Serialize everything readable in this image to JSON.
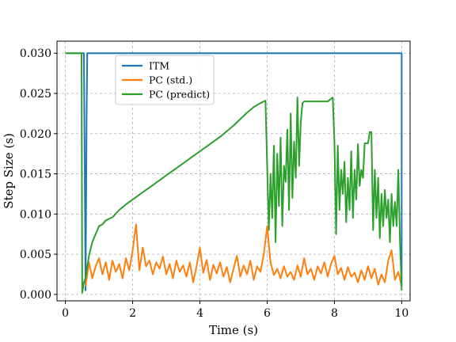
{
  "chart_data": {
    "type": "line",
    "title": "",
    "xlabel": "Time (s)",
    "ylabel": "Step Size (s)",
    "xlim": [
      -0.25,
      10.25
    ],
    "ylim": [
      -0.0008,
      0.0315
    ],
    "xticks": [
      0,
      2,
      4,
      6,
      8,
      10
    ],
    "xtick_labels": [
      "0",
      "2",
      "4",
      "6",
      "8",
      "10"
    ],
    "yticks": [
      0.0,
      0.005,
      0.01,
      0.015,
      0.02,
      0.025,
      0.03
    ],
    "ytick_labels": [
      "0.000",
      "0.005",
      "0.010",
      "0.015",
      "0.020",
      "0.025",
      "0.030"
    ],
    "grid": true,
    "legend_position": "upper-left (inside)",
    "series": [
      {
        "name": "ITM",
        "color": "#1f77b4",
        "x": [
          0,
          0.55,
          0.6,
          0.63,
          0.65,
          0.67,
          0.69,
          10.0,
          10.0
        ],
        "y": [
          0.03,
          0.03,
          0.0005,
          0.022,
          0.03,
          0.03,
          0.03,
          0.03,
          0.001
        ]
      },
      {
        "name": "PC (std.)",
        "color": "#ff7f0e",
        "x": [
          0.6,
          0.7,
          0.8,
          0.9,
          1.0,
          1.1,
          1.2,
          1.3,
          1.4,
          1.5,
          1.6,
          1.7,
          1.8,
          1.9,
          2.0,
          2.1,
          2.2,
          2.3,
          2.4,
          2.5,
          2.6,
          2.7,
          2.8,
          2.9,
          3.0,
          3.1,
          3.2,
          3.3,
          3.4,
          3.5,
          3.6,
          3.7,
          3.8,
          3.9,
          4.0,
          4.1,
          4.2,
          4.3,
          4.4,
          4.5,
          4.6,
          4.7,
          4.8,
          4.9,
          5.0,
          5.1,
          5.2,
          5.3,
          5.4,
          5.5,
          5.6,
          5.7,
          5.8,
          5.9,
          6.0,
          6.1,
          6.2,
          6.3,
          6.4,
          6.5,
          6.6,
          6.7,
          6.8,
          6.9,
          7.0,
          7.1,
          7.2,
          7.3,
          7.4,
          7.5,
          7.6,
          7.7,
          7.8,
          7.9,
          8.0,
          8.1,
          8.2,
          8.3,
          8.4,
          8.5,
          8.6,
          8.7,
          8.8,
          8.9,
          9.0,
          9.1,
          9.2,
          9.3,
          9.4,
          9.5,
          9.6,
          9.7,
          9.8,
          9.9,
          10.0
        ],
        "y": [
          0.001,
          0.004,
          0.002,
          0.0035,
          0.0045,
          0.0025,
          0.004,
          0.0018,
          0.0042,
          0.0028,
          0.0038,
          0.002,
          0.0045,
          0.003,
          0.0055,
          0.0087,
          0.003,
          0.0058,
          0.0035,
          0.0042,
          0.0025,
          0.004,
          0.0032,
          0.0047,
          0.0025,
          0.0038,
          0.002,
          0.0042,
          0.0028,
          0.0036,
          0.0022,
          0.004,
          0.0015,
          0.0035,
          0.0058,
          0.0027,
          0.0043,
          0.0018,
          0.0037,
          0.0026,
          0.004,
          0.0022,
          0.0034,
          0.0015,
          0.0032,
          0.0048,
          0.0022,
          0.0036,
          0.0025,
          0.0042,
          0.0018,
          0.0035,
          0.0028,
          0.005,
          0.0085,
          0.004,
          0.0024,
          0.0032,
          0.002,
          0.0035,
          0.0022,
          0.0028,
          0.0018,
          0.0036,
          0.0022,
          0.0045,
          0.0025,
          0.0032,
          0.0018,
          0.0035,
          0.0026,
          0.004,
          0.0022,
          0.0038,
          0.0048,
          0.0025,
          0.0033,
          0.0018,
          0.0034,
          0.0022,
          0.0027,
          0.0015,
          0.003,
          0.0018,
          0.0035,
          0.002,
          0.0032,
          0.0012,
          0.0025,
          0.0015,
          0.0042,
          0.0055,
          0.0018,
          0.0028,
          0.001
        ]
      },
      {
        "name": "PC (predict)",
        "color": "#2ca02c",
        "x": [
          0,
          0.45,
          0.48,
          0.5,
          0.55,
          0.6,
          0.7,
          0.8,
          0.9,
          1.0,
          1.1,
          1.2,
          1.4,
          1.6,
          1.8,
          2.0,
          2.2,
          2.4,
          2.6,
          2.8,
          3.0,
          3.2,
          3.4,
          3.6,
          3.8,
          4.0,
          4.2,
          4.4,
          4.6,
          4.8,
          5.0,
          5.2,
          5.4,
          5.6,
          5.8,
          5.95,
          6.0,
          6.05,
          6.1,
          6.15,
          6.2,
          6.25,
          6.3,
          6.35,
          6.4,
          6.45,
          6.5,
          6.55,
          6.6,
          6.65,
          6.7,
          6.75,
          6.8,
          6.85,
          6.9,
          6.95,
          7.0,
          7.05,
          7.1,
          7.2,
          7.4,
          7.6,
          7.8,
          7.95,
          8.0,
          8.05,
          8.1,
          8.15,
          8.2,
          8.25,
          8.3,
          8.35,
          8.4,
          8.45,
          8.5,
          8.55,
          8.6,
          8.65,
          8.7,
          8.75,
          8.8,
          8.85,
          8.9,
          8.95,
          9.0,
          9.05,
          9.1,
          9.15,
          9.2,
          9.25,
          9.3,
          9.35,
          9.4,
          9.45,
          9.5,
          9.55,
          9.6,
          9.65,
          9.7,
          9.75,
          9.8,
          9.85,
          9.9,
          9.95,
          10.0
        ],
        "y": [
          0.03,
          0.03,
          0.03,
          0.0002,
          0.0015,
          0.002,
          0.0048,
          0.0065,
          0.0075,
          0.0085,
          0.0087,
          0.0092,
          0.0096,
          0.0105,
          0.0112,
          0.0118,
          0.0124,
          0.013,
          0.0136,
          0.0142,
          0.0148,
          0.0154,
          0.016,
          0.0166,
          0.0172,
          0.0178,
          0.0184,
          0.019,
          0.0196,
          0.0203,
          0.021,
          0.0218,
          0.0226,
          0.0233,
          0.0238,
          0.0241,
          0.016,
          0.008,
          0.015,
          0.0095,
          0.0185,
          0.0065,
          0.0175,
          0.011,
          0.0195,
          0.0085,
          0.016,
          0.014,
          0.0205,
          0.0105,
          0.0225,
          0.012,
          0.019,
          0.0145,
          0.0245,
          0.016,
          0.0215,
          0.0238,
          0.024,
          0.024,
          0.024,
          0.024,
          0.024,
          0.0245,
          0.019,
          0.0075,
          0.0185,
          0.0105,
          0.0155,
          0.0125,
          0.0165,
          0.009,
          0.0145,
          0.0105,
          0.0178,
          0.0095,
          0.0155,
          0.0118,
          0.0187,
          0.0135,
          0.0155,
          0.0145,
          0.0188,
          0.0188,
          0.0188,
          0.0202,
          0.0202,
          0.008,
          0.0155,
          0.0095,
          0.0145,
          0.007,
          0.0125,
          0.0085,
          0.013,
          0.0095,
          0.0118,
          0.0065,
          0.0125,
          0.0085,
          0.0115,
          0.0085,
          0.0155,
          0.0065,
          0.0005
        ]
      }
    ]
  }
}
